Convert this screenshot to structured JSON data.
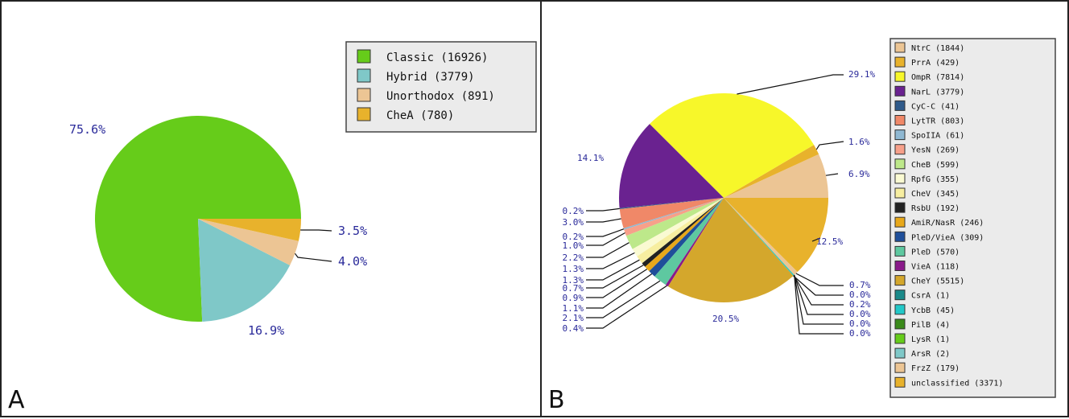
{
  "panels": {
    "a": {
      "letter": "A"
    },
    "b": {
      "letter": "B"
    }
  },
  "chart_data": [
    {
      "type": "pie",
      "slices": [
        {
          "label": "Classic (16926)",
          "value": 16926,
          "percent_label": "75.6%",
          "color": "#66cc1a"
        },
        {
          "label": "Hybrid (3779)",
          "value": 3779,
          "percent_label": "16.9%",
          "color": "#7fc8c8"
        },
        {
          "label": "Unorthodox (891)",
          "value": 891,
          "percent_label": "4.0%",
          "color": "#ecc594"
        },
        {
          "label": "CheA (780)",
          "value": 780,
          "percent_label": "3.5%",
          "color": "#e8b22c"
        }
      ],
      "legend_placement": "top-right"
    },
    {
      "type": "pie",
      "slices": [
        {
          "label": "NtrC (1844)",
          "value": 1844,
          "percent_label": "6.9%",
          "color": "#ecc594"
        },
        {
          "label": "PrrA (429)",
          "value": 429,
          "percent_label": "1.6%",
          "color": "#e8b22c"
        },
        {
          "label": "OmpR (7814)",
          "value": 7814,
          "percent_label": "29.1%",
          "color": "#f7f72a"
        },
        {
          "label": "NarL (3779)",
          "value": 3779,
          "percent_label": "14.1%",
          "color": "#6a2290"
        },
        {
          "label": "CyC-C (41)",
          "value": 41,
          "percent_label": "0.2%",
          "color": "#2f5a8a"
        },
        {
          "label": "LytTR (803)",
          "value": 803,
          "percent_label": "3.0%",
          "color": "#f08868"
        },
        {
          "label": "SpoIIA (61)",
          "value": 61,
          "percent_label": "0.2%",
          "color": "#8fb8d2"
        },
        {
          "label": "YesN (269)",
          "value": 269,
          "percent_label": "1.0%",
          "color": "#f7a08a"
        },
        {
          "label": "CheB (599)",
          "value": 599,
          "percent_label": "2.2%",
          "color": "#bde88a"
        },
        {
          "label": "RpfG (355)",
          "value": 355,
          "percent_label": "1.3%",
          "color": "#fafad2"
        },
        {
          "label": "CheV (345)",
          "value": 345,
          "percent_label": "1.3%",
          "color": "#f7eea0"
        },
        {
          "label": "RsbU (192)",
          "value": 192,
          "percent_label": "0.7%",
          "color": "#222222"
        },
        {
          "label": "AmiR/NasR (246)",
          "value": 246,
          "percent_label": "0.9%",
          "color": "#e8a81a"
        },
        {
          "label": "PleD/VieA (309)",
          "value": 309,
          "percent_label": "1.1%",
          "color": "#1f4f9a"
        },
        {
          "label": "PleD (570)",
          "value": 570,
          "percent_label": "2.1%",
          "color": "#5ec8a0"
        },
        {
          "label": "VieA (118)",
          "value": 118,
          "percent_label": "0.4%",
          "color": "#8a1a8a"
        },
        {
          "label": "CheY (5515)",
          "value": 5515,
          "percent_label": "20.5%",
          "color": "#d4a72c"
        },
        {
          "label": "CsrA (1)",
          "value": 1,
          "percent_label": "0.0%",
          "color": "#1a8a8a"
        },
        {
          "label": "YcbB (45)",
          "value": 45,
          "percent_label": "0.2%",
          "color": "#22c8c8"
        },
        {
          "label": "PilB (4)",
          "value": 4,
          "percent_label": "0.0%",
          "color": "#3a8a1a"
        },
        {
          "label": "LysR (1)",
          "value": 1,
          "percent_label": "0.0%",
          "color": "#66cc1a"
        },
        {
          "label": "ArsR (2)",
          "value": 2,
          "percent_label": "0.0%",
          "color": "#7fc8c8"
        },
        {
          "label": "FrzZ (179)",
          "value": 179,
          "percent_label": "0.7%",
          "color": "#ecc594"
        },
        {
          "label": "unclassified (3371)",
          "value": 3371,
          "percent_label": "12.5%",
          "color": "#e8b22c"
        }
      ],
      "legend_placement": "right"
    }
  ]
}
